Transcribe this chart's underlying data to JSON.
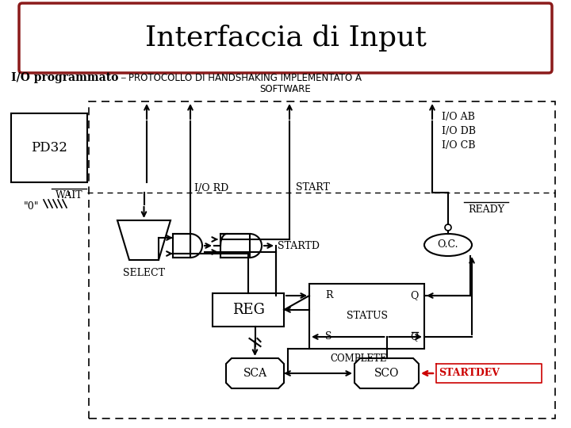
{
  "title": "Interfaccia di Input",
  "subtitle_bold": "I/O programmato",
  "subtitle_dash": " – ",
  "subtitle_small": "PROTOCOLLO DI HANDSHAKING IMPLEMENTATO A",
  "subtitle_small2": "SOFTWARE",
  "title_box_color": "#8B1A1A",
  "background": "#ffffff",
  "text_color": "#000000",
  "red_color": "#cc0000"
}
